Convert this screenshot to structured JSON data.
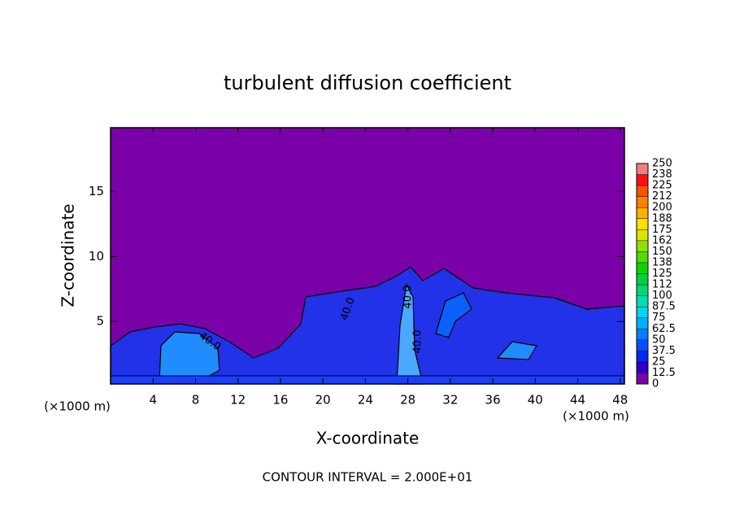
{
  "chart_data": {
    "type": "contour",
    "title": "turbulent diffusion coefficient",
    "x_label": "X-coordinate",
    "y_label": "Z-coordinate",
    "x_unit_left": "(×1000 m)",
    "x_unit_right": "(×1000 m)",
    "footer": "CONTOUR INTERVAL = 2.000E+01",
    "contour_labels": [
      "40.0",
      "40.0",
      "40.0",
      "40.0"
    ],
    "xlim": [
      0,
      48.4
    ],
    "xticks": [
      4,
      8,
      12,
      16,
      20,
      24,
      28,
      32,
      36,
      40,
      44,
      48
    ],
    "ylim": [
      0.2,
      19.9
    ],
    "yticks": [
      5,
      10,
      15
    ],
    "colorbar": {
      "levels": [
        0,
        12.5,
        25,
        37.5,
        50,
        62.5,
        75,
        87.5,
        100,
        112,
        125,
        138,
        150,
        162,
        175,
        188,
        200,
        212,
        225,
        238,
        250
      ],
      "colors": [
        "#7a00a8",
        "#2a00c8",
        "#0028f0",
        "#0050ff",
        "#0080ff",
        "#00b0ff",
        "#00d8f0",
        "#00e0b0",
        "#00d870",
        "#00d040",
        "#10d000",
        "#50dc00",
        "#90e000",
        "#d8e800",
        "#ffe000",
        "#ffb000",
        "#ff8000",
        "#ff5000",
        "#ff1010",
        "#f08080"
      ]
    }
  }
}
